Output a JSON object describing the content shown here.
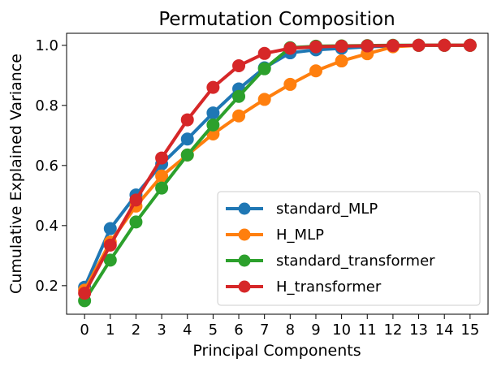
{
  "chart_data": {
    "type": "line",
    "title": "Permutation Composition",
    "xlabel": "Principal Components",
    "ylabel": "Cumulative Explained Variance",
    "x": [
      0,
      1,
      2,
      3,
      4,
      5,
      6,
      7,
      8,
      9,
      10,
      11,
      12,
      13,
      14,
      15
    ],
    "xlim": [
      -0.7,
      15.7
    ],
    "ylim": [
      0.105,
      1.04
    ],
    "yticks": [
      0.2,
      0.4,
      0.6,
      0.8,
      1.0
    ],
    "ytick_labels": [
      "0.2",
      "0.4",
      "0.6",
      "0.8",
      "1.0"
    ],
    "xtick_labels": [
      "0",
      "1",
      "2",
      "3",
      "4",
      "5",
      "6",
      "7",
      "8",
      "9",
      "10",
      "11",
      "12",
      "13",
      "14",
      "15"
    ],
    "grid": false,
    "legend_position": "lower-right",
    "series": [
      {
        "name": "standard_MLP",
        "color": "#1f77b4",
        "values": [
          0.195,
          0.39,
          0.502,
          0.605,
          0.688,
          0.775,
          0.855,
          0.925,
          0.975,
          0.985,
          0.99,
          0.995,
          0.998,
          1.0,
          1.0,
          1.0
        ]
      },
      {
        "name": "H_MLP",
        "color": "#ff7f0e",
        "values": [
          0.185,
          0.345,
          0.465,
          0.565,
          0.635,
          0.705,
          0.765,
          0.82,
          0.87,
          0.915,
          0.948,
          0.972,
          0.995,
          1.0,
          1.0,
          1.0
        ]
      },
      {
        "name": "standard_transformer",
        "color": "#2ca02c",
        "values": [
          0.15,
          0.285,
          0.412,
          0.525,
          0.635,
          0.735,
          0.83,
          0.922,
          0.992,
          0.997,
          0.998,
          0.999,
          1.0,
          1.0,
          1.0,
          1.0
        ]
      },
      {
        "name": "H_transformer",
        "color": "#d62728",
        "values": [
          0.175,
          0.335,
          0.485,
          0.625,
          0.752,
          0.86,
          0.932,
          0.973,
          0.99,
          0.995,
          0.997,
          0.998,
          0.999,
          1.0,
          1.0,
          1.0
        ]
      }
    ]
  }
}
